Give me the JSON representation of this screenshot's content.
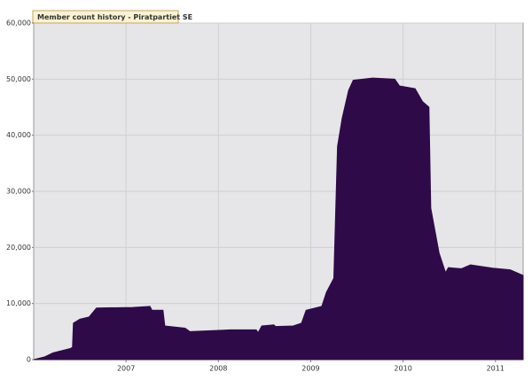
{
  "chart_data": {
    "type": "area",
    "title": "Member count history - Piratpartiet SE",
    "x": [
      2006.0,
      2006.12,
      2006.21,
      2006.4,
      2006.42,
      2006.43,
      2006.5,
      2006.6,
      2006.68,
      2007.07,
      2007.26,
      2007.28,
      2007.4,
      2007.42,
      2007.64,
      2007.69,
      2008.13,
      2008.41,
      2008.43,
      2008.47,
      2008.6,
      2008.62,
      2008.81,
      2008.9,
      2008.95,
      2009.12,
      2009.17,
      2009.25,
      2009.29,
      2009.34,
      2009.41,
      2009.46,
      2009.67,
      2009.91,
      2009.96,
      2010.13,
      2010.21,
      2010.28,
      2010.3,
      2010.39,
      2010.46,
      2010.49,
      2010.63,
      2010.73,
      2010.97,
      2011.16,
      2011.3
    ],
    "values": [
      0,
      500,
      1200,
      2000,
      2200,
      6500,
      7200,
      7600,
      9200,
      9300,
      9500,
      8800,
      8800,
      6000,
      5600,
      5000,
      5300,
      5300,
      4800,
      6000,
      6200,
      5900,
      6000,
      6500,
      8800,
      9500,
      12000,
      14500,
      38000,
      43000,
      48000,
      49800,
      50200,
      50000,
      48800,
      48300,
      46000,
      45000,
      27000,
      19000,
      15500,
      16400,
      16200,
      16900,
      16300,
      16000,
      15000
    ],
    "color": "#2f0a49",
    "xlim": [
      2006.0,
      2011.3
    ],
    "xticks": [
      2007,
      2008,
      2009,
      2010,
      2011
    ],
    "ylim": [
      0,
      60000
    ],
    "yticks": [
      0,
      {
        "value": 10000,
        "label": "10,000"
      },
      {
        "value": 20000,
        "label": "20,000"
      },
      {
        "value": 30000,
        "label": "30,000"
      },
      {
        "value": 40000,
        "label": "40,000"
      },
      {
        "value": 50000,
        "label": "50,000"
      },
      {
        "value": 60000,
        "label": "60,000"
      }
    ],
    "grid": true
  }
}
